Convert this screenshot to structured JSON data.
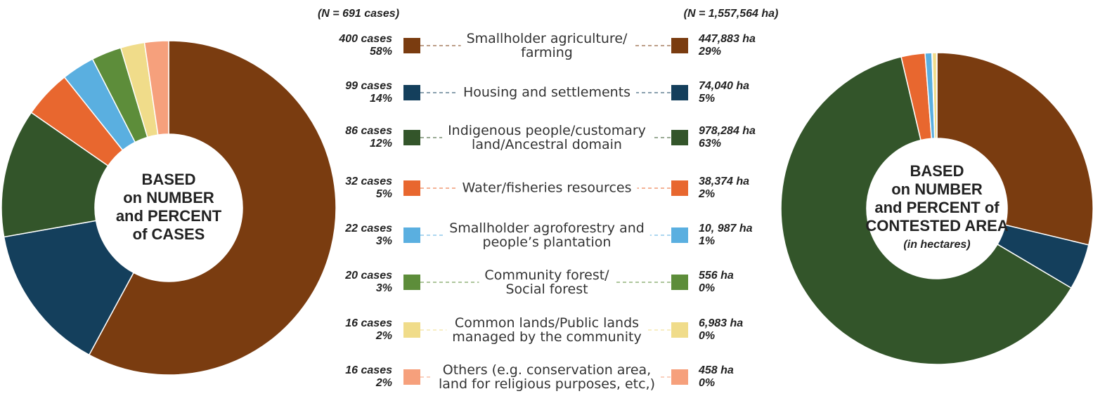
{
  "chart_data": [
    {
      "type": "pie",
      "title": [
        "BASED",
        "on NUMBER",
        "and PERCENT",
        "of CASES"
      ],
      "n_label": "(N = 691 cases)",
      "categories": [
        "Smallholder agriculture/\nfarming",
        "Housing and settlements",
        "Indigenous people/customary\nland/Ancestral domain",
        "Water/fisheries resources",
        "Smallholder agroforestry and\npeople’s plantation",
        "Community forest/\nSocial forest",
        "Common lands/Public lands\nmanaged by the community",
        "Others (e.g. conservation area,\nland for religious purposes, etc,)"
      ],
      "colors": [
        "#7a3c10",
        "#143f5c",
        "#33552a",
        "#e8672f",
        "#5aafe0",
        "#5d8d3a",
        "#f0dc8a",
        "#f6a07c"
      ],
      "values": [
        400,
        99,
        86,
        32,
        22,
        20,
        16,
        16
      ],
      "value_labels": [
        "400 cases",
        "99 cases",
        "86 cases",
        "32 cases",
        "22 cases",
        "20 cases",
        "16 cases",
        "16 cases"
      ],
      "percent_labels": [
        "58%",
        "14%",
        "12%",
        "5%",
        "3%",
        "3%",
        "2%",
        "2%"
      ]
    },
    {
      "type": "pie",
      "title": [
        "BASED",
        "on NUMBER",
        "and PERCENT of",
        "CONTESTED AREA"
      ],
      "subtitle": "(in hectares)",
      "n_label": "(N = 1,557,564 ha)",
      "colors": [
        "#7a3c10",
        "#143f5c",
        "#33552a",
        "#e8672f",
        "#5aafe0",
        "#5d8d3a",
        "#f0dc8a",
        "#f6a07c"
      ],
      "values": [
        447883,
        74040,
        978284,
        38374,
        10987,
        556,
        6983,
        458
      ],
      "value_labels": [
        "447,883 ha",
        "74,040 ha",
        " 978,284 ha",
        "38,374 ha",
        "10, 987 ha",
        "556 ha",
        "6,983 ha",
        "458 ha"
      ],
      "percent_labels": [
        "29%",
        "5%",
        "63%",
        "2%",
        "1%",
        "0%",
        "0%",
        "0%"
      ]
    }
  ]
}
